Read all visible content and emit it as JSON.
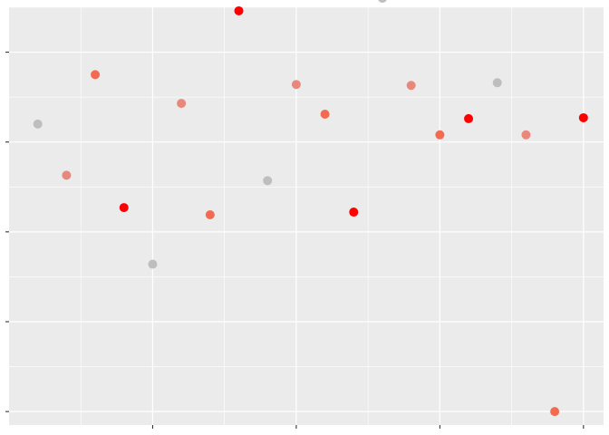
{
  "chart_data": {
    "type": "scatter",
    "title": "",
    "xlabel": "",
    "ylabel": "",
    "grid": true,
    "legend": "none",
    "xlim": [
      0,
      20.7
    ],
    "ylim": [
      -0.15,
      4.5
    ],
    "x_major_ticks": [
      5,
      10,
      15,
      20
    ],
    "x_minor_ticks": [
      2.5,
      7.5,
      12.5,
      17.5
    ],
    "y_major_ticks": [
      0,
      1,
      2,
      3,
      4
    ],
    "y_minor_ticks": [
      0.5,
      1.5,
      2.5,
      3.5,
      4.5
    ],
    "colors": {
      "panel_background": "#ebebeb",
      "grid": "#ffffff",
      "tick": "#333333"
    },
    "color_groups": {
      "gray": "#bebebe",
      "light_salmon": "#e8877b",
      "coral": "#f26b50",
      "red": "#ff0000"
    },
    "series": [
      {
        "points": [
          {
            "x": 1,
            "y": 3.2,
            "color": "gray"
          },
          {
            "x": 2,
            "y": 2.63,
            "color": "light_salmon"
          },
          {
            "x": 3,
            "y": 3.75,
            "color": "coral"
          },
          {
            "x": 4,
            "y": 2.27,
            "color": "red"
          },
          {
            "x": 5,
            "y": 1.64,
            "color": "gray"
          },
          {
            "x": 6,
            "y": 3.43,
            "color": "light_salmon"
          },
          {
            "x": 7,
            "y": 2.19,
            "color": "coral"
          },
          {
            "x": 8,
            "y": 4.46,
            "color": "red"
          },
          {
            "x": 9,
            "y": 2.57,
            "color": "gray"
          },
          {
            "x": 10,
            "y": 3.64,
            "color": "light_salmon"
          },
          {
            "x": 11,
            "y": 3.31,
            "color": "coral"
          },
          {
            "x": 12,
            "y": 2.22,
            "color": "red"
          },
          {
            "x": 13,
            "y": 4.6,
            "color": "gray"
          },
          {
            "x": 14,
            "y": 3.63,
            "color": "light_salmon"
          },
          {
            "x": 15,
            "y": 3.08,
            "color": "coral"
          },
          {
            "x": 16,
            "y": 3.26,
            "color": "red"
          },
          {
            "x": 17,
            "y": 3.66,
            "color": "gray"
          },
          {
            "x": 18,
            "y": 3.08,
            "color": "light_salmon"
          },
          {
            "x": 19,
            "y": 0.0,
            "color": "coral"
          },
          {
            "x": 20,
            "y": 3.27,
            "color": "red"
          }
        ]
      }
    ]
  }
}
